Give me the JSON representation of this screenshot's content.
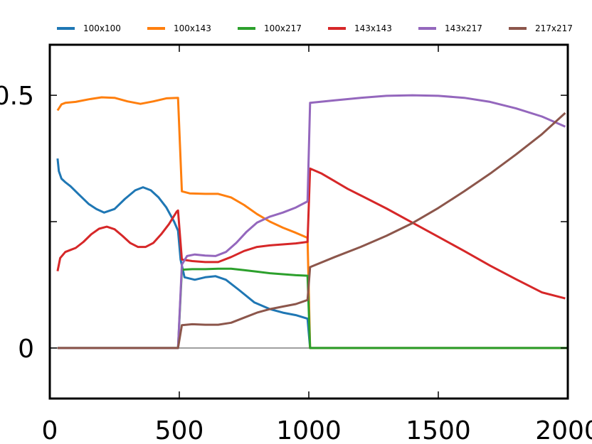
{
  "chart_data": {
    "type": "line",
    "xlim": [
      0,
      2000
    ],
    "ylim": [
      -0.1,
      0.6
    ],
    "legend_position": "top",
    "grid": false,
    "x_ticks": [
      {
        "value": 0,
        "label": "0"
      },
      {
        "value": 500,
        "label": "500"
      },
      {
        "value": 1000,
        "label": "1000"
      },
      {
        "value": 1500,
        "label": "1500"
      },
      {
        "value": 2000,
        "label": "2000"
      }
    ],
    "y_ticks": [
      {
        "value": 0,
        "label": "0"
      },
      {
        "value": 0.25,
        "label": ""
      },
      {
        "value": 0.5,
        "label": "0.5"
      }
    ],
    "reference_line": {
      "y": 0,
      "color": "#808080"
    },
    "series": [
      {
        "name": "100x100",
        "color": "#1f77b4",
        "points": [
          [
            30,
            0.375
          ],
          [
            35,
            0.35
          ],
          [
            45,
            0.335
          ],
          [
            60,
            0.328
          ],
          [
            80,
            0.32
          ],
          [
            110,
            0.305
          ],
          [
            150,
            0.285
          ],
          [
            180,
            0.275
          ],
          [
            210,
            0.268
          ],
          [
            250,
            0.275
          ],
          [
            290,
            0.295
          ],
          [
            330,
            0.312
          ],
          [
            360,
            0.318
          ],
          [
            390,
            0.312
          ],
          [
            420,
            0.298
          ],
          [
            450,
            0.278
          ],
          [
            480,
            0.25
          ],
          [
            495,
            0.232
          ],
          [
            505,
            0.175
          ],
          [
            520,
            0.14
          ],
          [
            560,
            0.135
          ],
          [
            600,
            0.14
          ],
          [
            640,
            0.142
          ],
          [
            680,
            0.135
          ],
          [
            730,
            0.115
          ],
          [
            790,
            0.09
          ],
          [
            850,
            0.077
          ],
          [
            900,
            0.07
          ],
          [
            950,
            0.065
          ],
          [
            995,
            0.058
          ],
          [
            1005,
            0
          ],
          [
            1500,
            0
          ],
          [
            2000,
            0
          ]
        ]
      },
      {
        "name": "100x143",
        "color": "#ff7f0e",
        "points": [
          [
            30,
            0.47
          ],
          [
            45,
            0.482
          ],
          [
            60,
            0.485
          ],
          [
            100,
            0.487
          ],
          [
            150,
            0.492
          ],
          [
            200,
            0.496
          ],
          [
            250,
            0.495
          ],
          [
            300,
            0.488
          ],
          [
            350,
            0.483
          ],
          [
            400,
            0.488
          ],
          [
            450,
            0.494
          ],
          [
            495,
            0.495
          ],
          [
            510,
            0.31
          ],
          [
            540,
            0.306
          ],
          [
            600,
            0.305
          ],
          [
            650,
            0.305
          ],
          [
            700,
            0.298
          ],
          [
            750,
            0.283
          ],
          [
            800,
            0.265
          ],
          [
            850,
            0.25
          ],
          [
            900,
            0.238
          ],
          [
            950,
            0.228
          ],
          [
            995,
            0.218
          ],
          [
            1005,
            0
          ],
          [
            1500,
            0
          ],
          [
            2000,
            0
          ]
        ]
      },
      {
        "name": "100x217",
        "color": "#2ca02c",
        "points": [
          [
            30,
            0
          ],
          [
            495,
            0
          ],
          [
            510,
            0.155
          ],
          [
            550,
            0.156
          ],
          [
            600,
            0.156
          ],
          [
            650,
            0.157
          ],
          [
            700,
            0.157
          ],
          [
            750,
            0.154
          ],
          [
            800,
            0.151
          ],
          [
            850,
            0.148
          ],
          [
            900,
            0.146
          ],
          [
            950,
            0.144
          ],
          [
            995,
            0.143
          ],
          [
            1005,
            0
          ],
          [
            1500,
            0
          ],
          [
            2000,
            0
          ]
        ]
      },
      {
        "name": "143x143",
        "color": "#d62728",
        "points": [
          [
            30,
            0.152
          ],
          [
            40,
            0.178
          ],
          [
            60,
            0.19
          ],
          [
            80,
            0.194
          ],
          [
            100,
            0.198
          ],
          [
            130,
            0.21
          ],
          [
            160,
            0.225
          ],
          [
            190,
            0.236
          ],
          [
            220,
            0.24
          ],
          [
            250,
            0.235
          ],
          [
            280,
            0.222
          ],
          [
            310,
            0.208
          ],
          [
            340,
            0.2
          ],
          [
            370,
            0.2
          ],
          [
            400,
            0.208
          ],
          [
            430,
            0.225
          ],
          [
            460,
            0.245
          ],
          [
            490,
            0.27
          ],
          [
            495,
            0.272
          ],
          [
            510,
            0.175
          ],
          [
            550,
            0.172
          ],
          [
            600,
            0.17
          ],
          [
            650,
            0.17
          ],
          [
            700,
            0.18
          ],
          [
            750,
            0.192
          ],
          [
            800,
            0.2
          ],
          [
            850,
            0.203
          ],
          [
            900,
            0.205
          ],
          [
            950,
            0.207
          ],
          [
            995,
            0.21
          ],
          [
            1005,
            0.355
          ],
          [
            1050,
            0.345
          ],
          [
            1100,
            0.33
          ],
          [
            1150,
            0.315
          ],
          [
            1200,
            0.302
          ],
          [
            1300,
            0.276
          ],
          [
            1400,
            0.248
          ],
          [
            1500,
            0.22
          ],
          [
            1600,
            0.192
          ],
          [
            1700,
            0.163
          ],
          [
            1800,
            0.136
          ],
          [
            1900,
            0.11
          ],
          [
            1990,
            0.098
          ]
        ]
      },
      {
        "name": "143x217",
        "color": "#9467bd",
        "points": [
          [
            30,
            0
          ],
          [
            495,
            0
          ],
          [
            510,
            0.165
          ],
          [
            530,
            0.182
          ],
          [
            560,
            0.185
          ],
          [
            600,
            0.183
          ],
          [
            640,
            0.182
          ],
          [
            680,
            0.19
          ],
          [
            720,
            0.208
          ],
          [
            760,
            0.23
          ],
          [
            800,
            0.248
          ],
          [
            850,
            0.26
          ],
          [
            900,
            0.268
          ],
          [
            950,
            0.278
          ],
          [
            995,
            0.29
          ],
          [
            1005,
            0.485
          ],
          [
            1100,
            0.49
          ],
          [
            1200,
            0.495
          ],
          [
            1300,
            0.499
          ],
          [
            1400,
            0.5
          ],
          [
            1500,
            0.499
          ],
          [
            1600,
            0.495
          ],
          [
            1700,
            0.487
          ],
          [
            1800,
            0.474
          ],
          [
            1900,
            0.458
          ],
          [
            1990,
            0.438
          ]
        ]
      },
      {
        "name": "217x217",
        "color": "#8c564b",
        "points": [
          [
            30,
            0
          ],
          [
            495,
            0
          ],
          [
            510,
            0.045
          ],
          [
            550,
            0.047
          ],
          [
            600,
            0.046
          ],
          [
            650,
            0.046
          ],
          [
            700,
            0.05
          ],
          [
            750,
            0.06
          ],
          [
            800,
            0.07
          ],
          [
            850,
            0.077
          ],
          [
            900,
            0.082
          ],
          [
            950,
            0.087
          ],
          [
            995,
            0.095
          ],
          [
            1005,
            0.16
          ],
          [
            1100,
            0.18
          ],
          [
            1200,
            0.2
          ],
          [
            1300,
            0.222
          ],
          [
            1400,
            0.247
          ],
          [
            1500,
            0.277
          ],
          [
            1600,
            0.31
          ],
          [
            1700,
            0.345
          ],
          [
            1800,
            0.383
          ],
          [
            1900,
            0.423
          ],
          [
            1990,
            0.465
          ]
        ]
      }
    ]
  }
}
